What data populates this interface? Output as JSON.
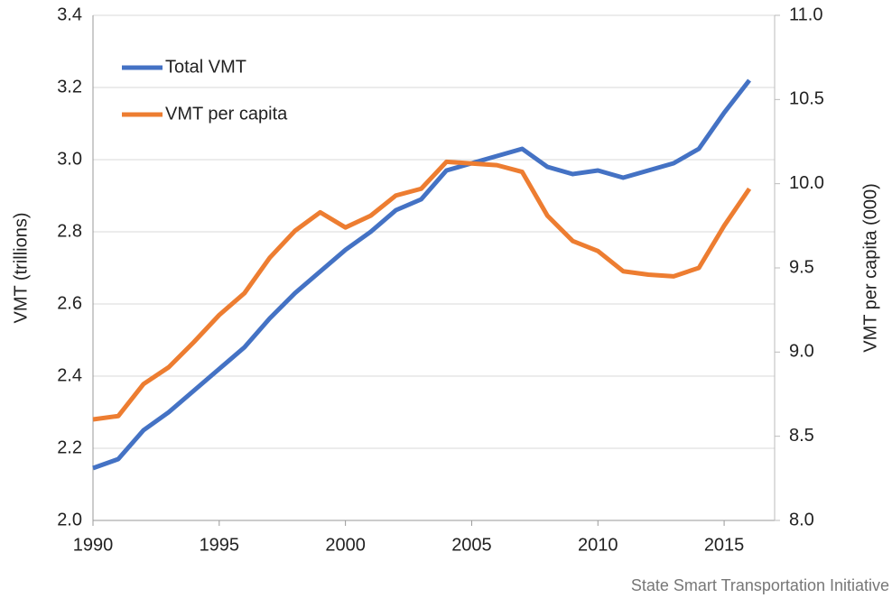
{
  "chart_data": {
    "type": "line",
    "x": [
      1990,
      1991,
      1992,
      1993,
      1994,
      1995,
      1996,
      1997,
      1998,
      1999,
      2000,
      2001,
      2002,
      2003,
      2004,
      2005,
      2006,
      2007,
      2008,
      2009,
      2010,
      2011,
      2012,
      2013,
      2014,
      2015,
      2016
    ],
    "series": [
      {
        "name": "Total VMT",
        "color": "#4472c4",
        "values": [
          2.145,
          2.17,
          2.25,
          2.3,
          2.36,
          2.42,
          2.48,
          2.56,
          2.63,
          2.69,
          2.75,
          2.8,
          2.86,
          2.89,
          2.97,
          2.99,
          3.01,
          3.03,
          2.98,
          2.96,
          2.97,
          2.95,
          2.97,
          2.99,
          3.03,
          3.13,
          3.22
        ]
      },
      {
        "name": "VMT per capita",
        "color": "#ed7d31",
        "axis": "y2",
        "values": [
          8.6,
          8.62,
          8.81,
          8.91,
          9.06,
          9.22,
          9.35,
          9.56,
          9.72,
          9.83,
          9.74,
          9.81,
          9.93,
          9.97,
          10.13,
          10.12,
          10.11,
          10.07,
          9.81,
          9.66,
          9.6,
          9.48,
          9.46,
          9.45,
          9.5,
          9.75,
          9.97
        ]
      }
    ],
    "xlim": [
      1990,
      2017
    ],
    "xticks": [
      1990,
      1995,
      2000,
      2005,
      2010,
      2015
    ],
    "ylim": [
      2.0,
      3.4
    ],
    "yticks": [
      {
        "value": 2,
        "label": "2.0"
      },
      2.2,
      2.4,
      2.6,
      2.8,
      {
        "value": 3,
        "label": "3.0"
      },
      3.2,
      3.4
    ],
    "y2lim": [
      8.0,
      11.0
    ],
    "y2ticks": [
      {
        "value": 8,
        "label": "8.0"
      },
      8.5,
      {
        "value": 9,
        "label": "9.0"
      },
      9.5,
      {
        "value": 10,
        "label": "10.0"
      },
      10.5,
      {
        "value": 11,
        "label": "11.0"
      }
    ],
    "ylabel": "VMT (trillions)",
    "y2label": "VMT per capita (000)",
    "source": "State Smart Transportation Initiative",
    "grid": true,
    "legend": "upper left"
  }
}
